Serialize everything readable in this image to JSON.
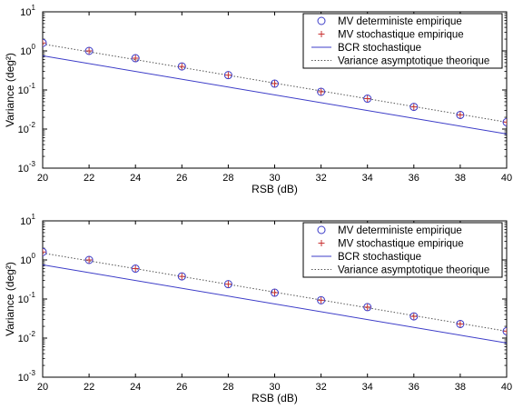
{
  "colors": {
    "circle": "#3c3cc8",
    "plus": "#c83232",
    "line": "#3c3cc8",
    "dotted": "#555555"
  },
  "chart_data": [
    {
      "type": "line",
      "xlabel": "RSB (dB)",
      "ylabel": "Variance (deg²)",
      "yscale": "log",
      "xlim": [
        20,
        40
      ],
      "ylim": [
        0.001,
        10
      ],
      "xticks": [
        "20",
        "22",
        "24",
        "26",
        "28",
        "30",
        "32",
        "34",
        "36",
        "38",
        "40"
      ],
      "yticks": [
        {
          "base": "10",
          "exp": "-3"
        },
        {
          "base": "10",
          "exp": "-2"
        },
        {
          "base": "10",
          "exp": "-1"
        },
        {
          "base": "10",
          "exp": "0"
        },
        {
          "base": "10",
          "exp": "1"
        }
      ],
      "legend_position": "top-right",
      "series": [
        {
          "name": "MV deterministe empirique",
          "style": "circle",
          "x": [
            20,
            22,
            24,
            26,
            28,
            30,
            32,
            34,
            36,
            38,
            40
          ],
          "y": [
            1.6,
            1.0,
            0.65,
            0.4,
            0.24,
            0.145,
            0.09,
            0.06,
            0.037,
            0.023,
            0.015
          ]
        },
        {
          "name": "MV stochastique empirique",
          "style": "plus",
          "x": [
            20,
            22,
            24,
            26,
            28,
            30,
            32,
            34,
            36,
            38,
            40
          ],
          "y": [
            1.6,
            1.0,
            0.65,
            0.4,
            0.24,
            0.145,
            0.09,
            0.06,
            0.037,
            0.023,
            0.015
          ]
        },
        {
          "name": "BCR stochastique",
          "style": "solid",
          "x": [
            20,
            40
          ],
          "y": [
            0.75,
            0.0075
          ]
        },
        {
          "name": "Variance asymptotique theorique",
          "style": "dotted",
          "x": [
            20,
            40
          ],
          "y": [
            1.5,
            0.015
          ]
        }
      ]
    },
    {
      "type": "line",
      "xlabel": "RSB (dB)",
      "ylabel": "Variance (deg²)",
      "yscale": "log",
      "xlim": [
        20,
        40
      ],
      "ylim": [
        0.001,
        10
      ],
      "xticks": [
        "20",
        "22",
        "24",
        "26",
        "28",
        "30",
        "32",
        "34",
        "36",
        "38",
        "40"
      ],
      "yticks": [
        {
          "base": "10",
          "exp": "-3"
        },
        {
          "base": "10",
          "exp": "-2"
        },
        {
          "base": "10",
          "exp": "-1"
        },
        {
          "base": "10",
          "exp": "0"
        },
        {
          "base": "10",
          "exp": "1"
        }
      ],
      "legend_position": "top-right",
      "series": [
        {
          "name": "MV deterministe empirique",
          "style": "circle",
          "x": [
            20,
            22,
            24,
            26,
            28,
            30,
            32,
            34,
            36,
            38,
            40
          ],
          "y": [
            1.6,
            1.0,
            0.6,
            0.38,
            0.24,
            0.145,
            0.093,
            0.062,
            0.036,
            0.023,
            0.015
          ]
        },
        {
          "name": "MV stochastique empirique",
          "style": "plus",
          "x": [
            20,
            22,
            24,
            26,
            28,
            30,
            32,
            34,
            36,
            38,
            40
          ],
          "y": [
            1.6,
            1.0,
            0.6,
            0.38,
            0.24,
            0.145,
            0.093,
            0.062,
            0.036,
            0.023,
            0.015
          ]
        },
        {
          "name": "BCR stochastique",
          "style": "solid",
          "x": [
            20,
            40
          ],
          "y": [
            0.75,
            0.0075
          ]
        },
        {
          "name": "Variance asymptotique theorique",
          "style": "dotted",
          "x": [
            20,
            40
          ],
          "y": [
            1.5,
            0.015
          ]
        }
      ]
    }
  ]
}
